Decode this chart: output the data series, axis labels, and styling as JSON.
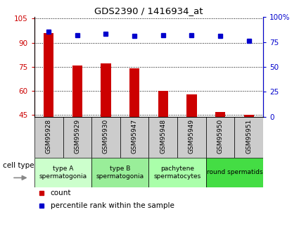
{
  "title": "GDS2390 / 1416934_at",
  "samples": [
    "GSM95928",
    "GSM95929",
    "GSM95930",
    "GSM95947",
    "GSM95948",
    "GSM95949",
    "GSM95950",
    "GSM95951"
  ],
  "bar_values": [
    96,
    76,
    77,
    74,
    60,
    58,
    47,
    45
  ],
  "percentile_values": [
    85,
    82,
    83,
    81,
    82,
    82,
    81,
    76
  ],
  "ylim_left": [
    44,
    106
  ],
  "ylim_right": [
    0,
    100
  ],
  "yticks_left": [
    45,
    60,
    75,
    90,
    105
  ],
  "yticks_right": [
    0,
    25,
    50,
    75,
    100
  ],
  "ytick_labels_right": [
    "0",
    "25",
    "50",
    "75",
    "100%"
  ],
  "ytick_labels_left": [
    "45",
    "60",
    "75",
    "90",
    "105"
  ],
  "bar_color": "#cc0000",
  "dot_color": "#0000cc",
  "bg_color": "#ffffff",
  "xticklabel_bg": "#cccccc",
  "cell_types": [
    {
      "label": "type A\nspermatogonia",
      "start": 0,
      "end": 2,
      "color": "#ccffcc"
    },
    {
      "label": "type B\nspermatogonia",
      "start": 2,
      "end": 4,
      "color": "#99ee99"
    },
    {
      "label": "pachytene\nspermatocytes",
      "start": 4,
      "end": 6,
      "color": "#aaffaa"
    },
    {
      "label": "round spermatids",
      "start": 6,
      "end": 8,
      "color": "#44dd44"
    }
  ],
  "legend_count_label": "count",
  "legend_pct_label": "percentile rank within the sample",
  "cell_type_label": "cell type"
}
